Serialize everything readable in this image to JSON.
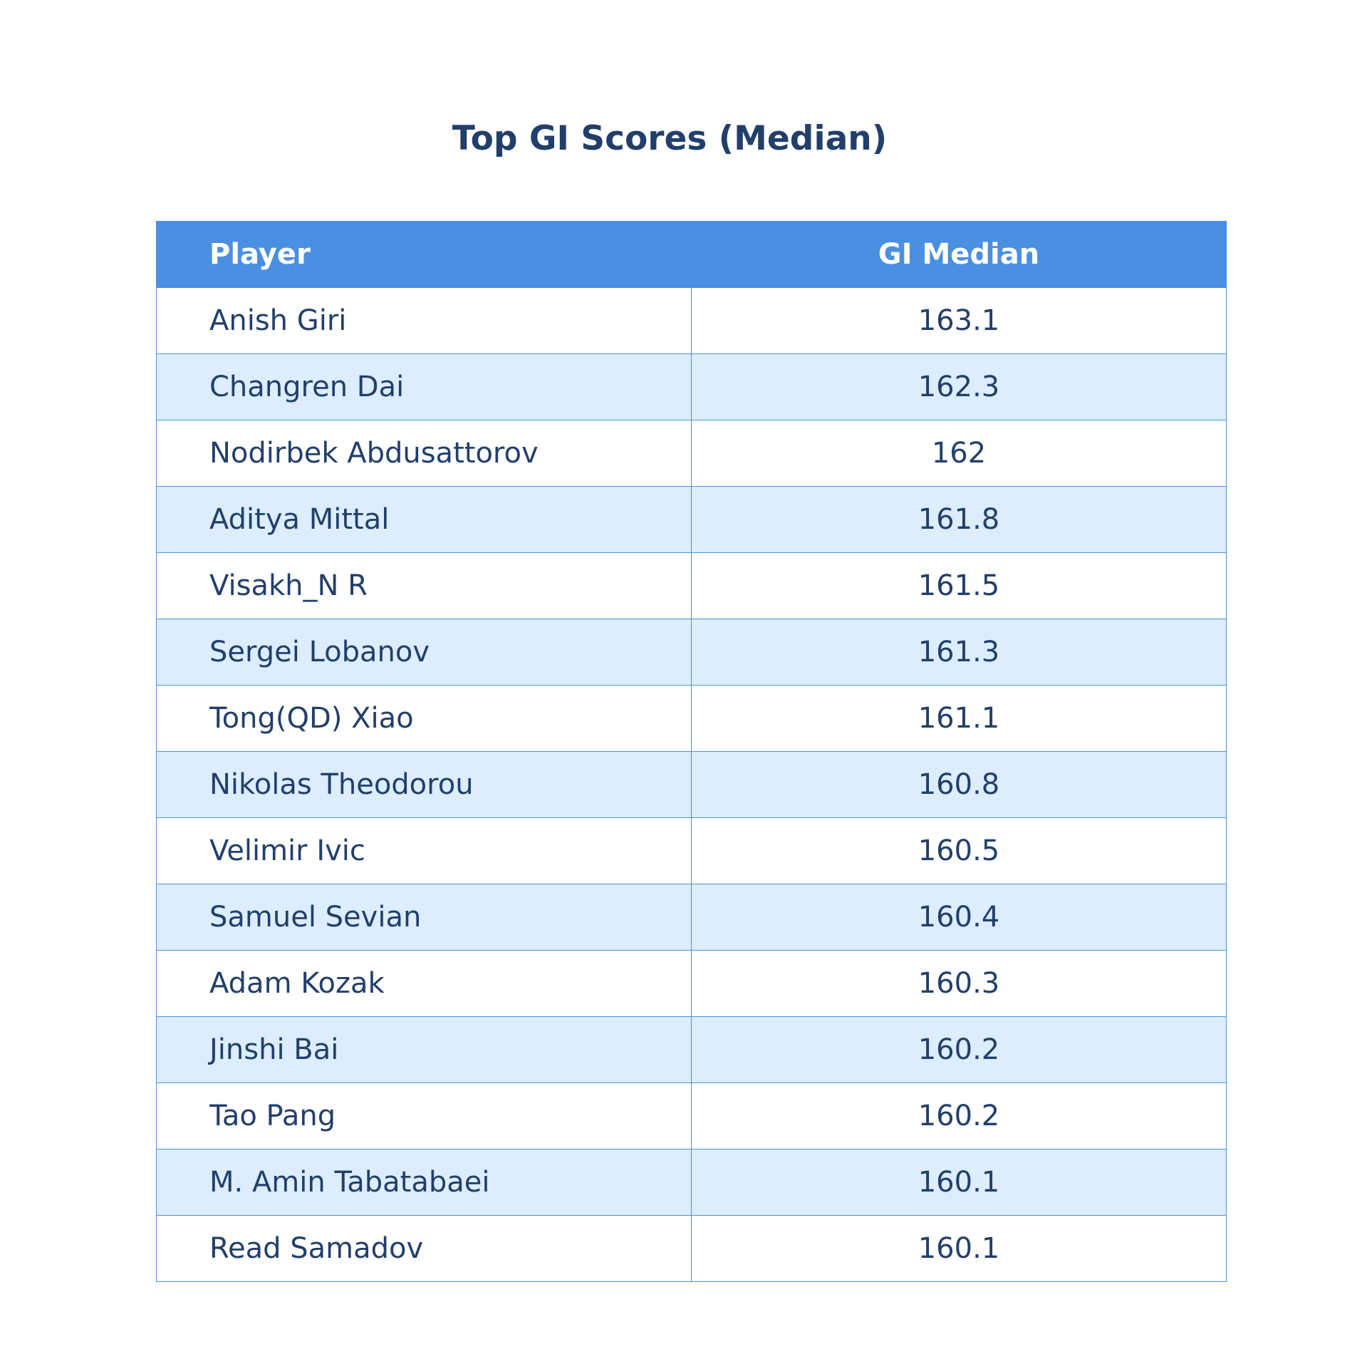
{
  "chart_data": {
    "type": "table",
    "title": "Top GI Scores (Median)",
    "columns": [
      "Player",
      "GI Median"
    ],
    "rows": [
      [
        "Anish Giri",
        "163.1"
      ],
      [
        "Changren Dai",
        "162.3"
      ],
      [
        "Nodirbek Abdusattorov",
        "162"
      ],
      [
        "Aditya Mittal",
        "161.8"
      ],
      [
        "Visakh_N R",
        "161.5"
      ],
      [
        "Sergei Lobanov",
        "161.3"
      ],
      [
        "Tong(QD) Xiao",
        "161.1"
      ],
      [
        "Nikolas Theodorou",
        "160.8"
      ],
      [
        "Velimir Ivic",
        "160.5"
      ],
      [
        "Samuel Sevian",
        "160.4"
      ],
      [
        "Adam Kozak",
        "160.3"
      ],
      [
        "Jinshi Bai",
        "160.2"
      ],
      [
        "Tao Pang",
        "160.2"
      ],
      [
        "M. Amin Tabatabaei",
        "160.1"
      ],
      [
        "Read Samadov",
        "160.1"
      ]
    ],
    "header_color": "#4a90e2",
    "stripe_color": "#dcedfd",
    "text_color": "#223f6b"
  }
}
